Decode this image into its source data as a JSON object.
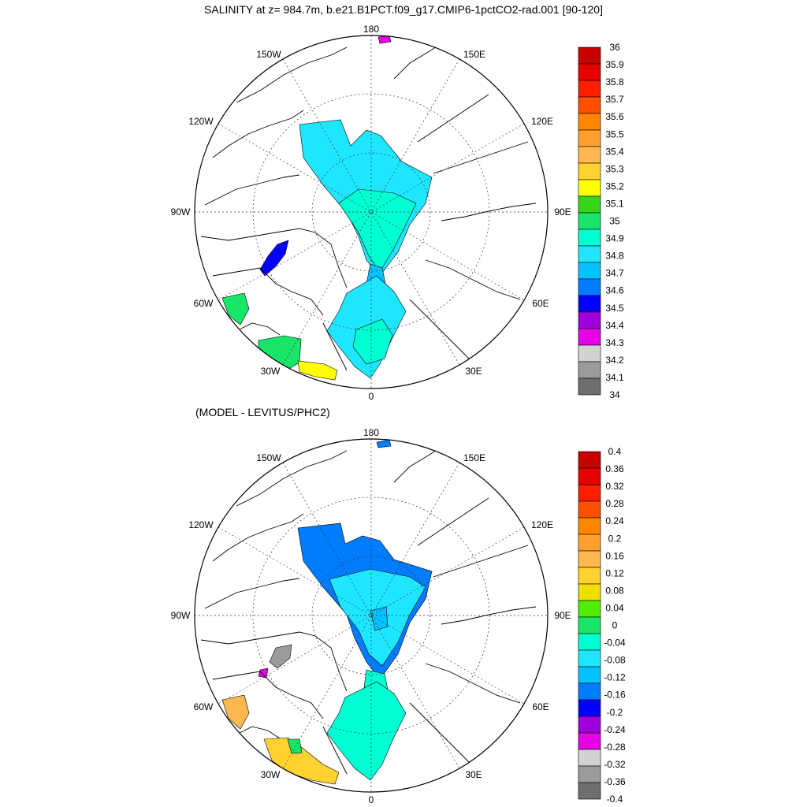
{
  "title": "SALINITY at z= 984.7m, b.e21.B1PCT.f09_g17.CMIP6-1pctCO2-rad.001 [90-120]",
  "subtitle": "(MODEL - LEVITUS/PHC2)",
  "lon_labels": {
    "deg180": "180",
    "e150": "150E",
    "e120": "120E",
    "e90": "90E",
    "e60": "60E",
    "e30": "30E",
    "deg0": "0",
    "w30": "30W",
    "w60": "60W",
    "w90": "90W",
    "w120": "120W",
    "w150": "150W"
  },
  "top_colorbar": {
    "labels": [
      "36",
      "35.9",
      "35.8",
      "35.7",
      "35.6",
      "35.5",
      "35.4",
      "35.3",
      "35.2",
      "35.1",
      "35",
      "34.9",
      "34.8",
      "34.7",
      "34.6",
      "34.5",
      "34.4",
      "34.3",
      "34.2",
      "34.1",
      "34"
    ],
    "colors": [
      "#c80000",
      "#e60000",
      "#ff1e00",
      "#ff5000",
      "#ff8700",
      "#ffa030",
      "#ffb850",
      "#ffd230",
      "#ffff00",
      "#35d619",
      "#19e669",
      "#00ffd2",
      "#1ee6ff",
      "#00c3ff",
      "#007dff",
      "#0000ff",
      "#a000dc",
      "#e600e6",
      "#d2d2d2",
      "#9b9b9b",
      "#6e6e6e"
    ]
  },
  "bottom_colorbar": {
    "labels": [
      "0.4",
      "0.36",
      "0.32",
      "0.28",
      "0.24",
      "0.2",
      "0.16",
      "0.12",
      "0.08",
      "0.04",
      "0",
      "-0.04",
      "-0.08",
      "-0.12",
      "-0.16",
      "-0.2",
      "-0.24",
      "-0.28",
      "-0.32",
      "-0.36",
      "-0.4"
    ],
    "colors": [
      "#c80000",
      "#e60000",
      "#ff1e00",
      "#ff5000",
      "#ff8700",
      "#ffa030",
      "#ffb850",
      "#ffd230",
      "#f0e000",
      "#50ee00",
      "#19e669",
      "#00ffd2",
      "#1ee6ff",
      "#00c3ff",
      "#007dff",
      "#0000ff",
      "#a000dc",
      "#e600e6",
      "#d2d2d2",
      "#9b9b9b",
      "#6e6e6e"
    ]
  },
  "top_map_colors": {
    "basin_outer": "#1ee6ff",
    "basin_inner": "#00ffd2",
    "strait": "#00c3ff",
    "nordic": "#1ee6ff",
    "baffin": "#0000ff",
    "labrador": "#19e669",
    "atlantic_green": "#19e669",
    "atlantic_yellow": "#ffff00",
    "bering": "#e600e6"
  },
  "bottom_map_colors": {
    "basin_outer": "#007dff",
    "basin_inner": "#1ee6ff",
    "basin_core": "#00c3ff",
    "strait": "#00ffd2",
    "nordic": "#00ffd2",
    "baffin": "#9b9b9b",
    "baffin_spot": "#e600e6",
    "labrador": "#ffb850",
    "atlantic_yellow": "#ffd230",
    "atlantic_green": "#19e669",
    "bering": "#007dff"
  }
}
